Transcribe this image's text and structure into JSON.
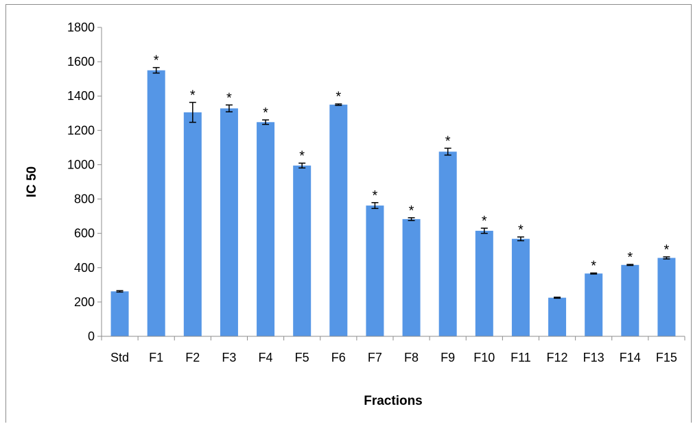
{
  "chart_data": {
    "type": "bar",
    "categories": [
      "Std",
      "F1",
      "F2",
      "F3",
      "F4",
      "F5",
      "F6",
      "F7",
      "F8",
      "F9",
      "F10",
      "F11",
      "F12",
      "F13",
      "F14",
      "F15"
    ],
    "values": [
      262,
      1550,
      1305,
      1328,
      1248,
      995,
      1350,
      762,
      683,
      1076,
      615,
      568,
      225,
      366,
      416,
      457
    ],
    "errors": [
      4,
      16,
      58,
      20,
      13,
      14,
      4,
      17,
      8,
      20,
      15,
      11,
      3,
      3,
      3,
      6
    ],
    "significant": [
      false,
      true,
      true,
      true,
      true,
      true,
      true,
      true,
      true,
      true,
      true,
      true,
      false,
      true,
      true,
      true
    ],
    "significance_marker": "*",
    "title": "",
    "xlabel": "Fractions",
    "ylabel": "IC 50",
    "ylim": [
      0,
      1800
    ],
    "yticks": [
      0,
      200,
      400,
      600,
      800,
      1000,
      1200,
      1400,
      1600,
      1800
    ],
    "grid": false,
    "legend": "none",
    "bar_color": "#5596e6",
    "error_bar_color": "#000000"
  }
}
